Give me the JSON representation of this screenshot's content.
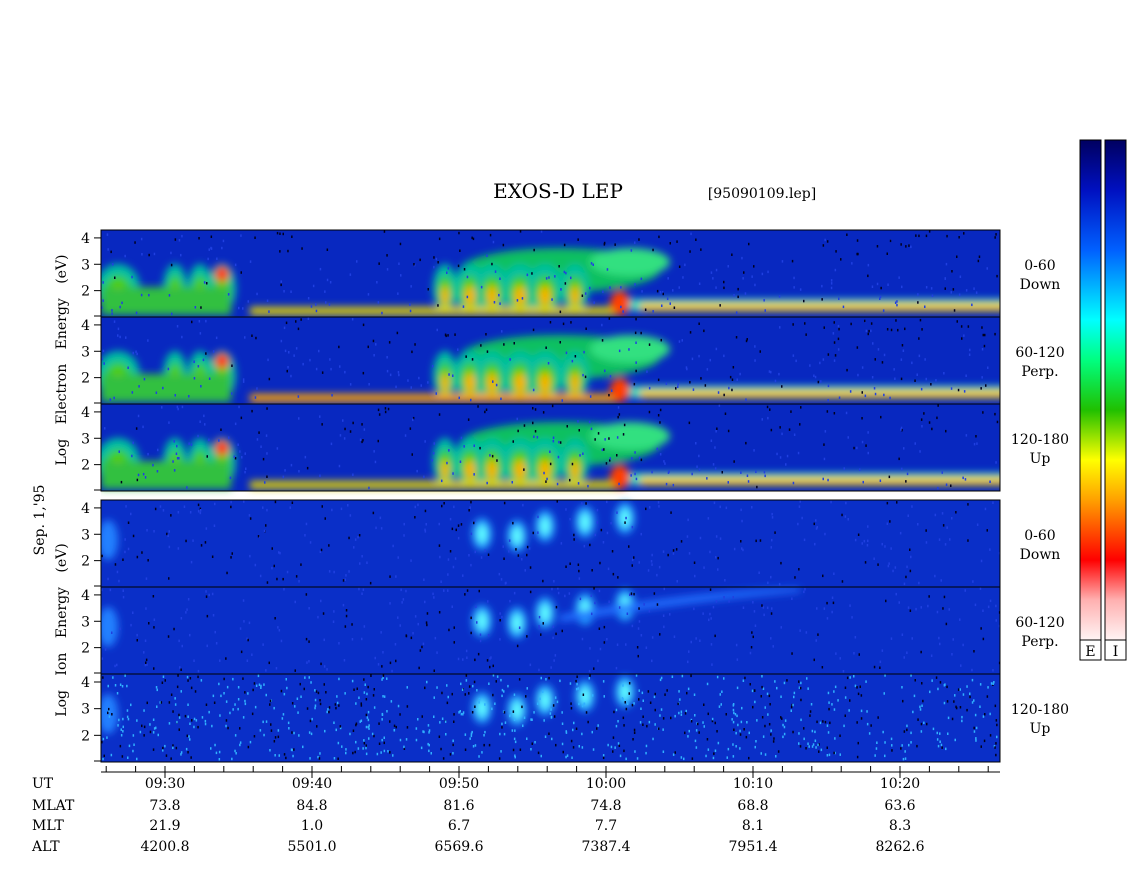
{
  "header": {
    "title": "EXOS-D LEP",
    "file": "[95090109.lep]",
    "date": "Sep. 1,'95"
  },
  "electron": {
    "axis_label": "Log Electron Energy (eV)",
    "panels": [
      [
        "0-60",
        "Down"
      ],
      [
        "60-120",
        "Perp."
      ],
      [
        "120-180",
        "Up"
      ]
    ]
  },
  "ion": {
    "axis_label": "Log Ion Energy (eV)",
    "panels": [
      [
        "0-60",
        "Down"
      ],
      [
        "60-120",
        "Perp."
      ],
      [
        "120-180",
        "Up"
      ]
    ]
  },
  "yticks": [
    2,
    3,
    4
  ],
  "ylim": [
    1,
    4.3
  ],
  "colorbars": [
    "E",
    "I"
  ],
  "table": {
    "row_labels": [
      "UT",
      "MLAT",
      "MLT",
      "ALT"
    ],
    "columns": [
      [
        "09:30",
        "73.8",
        "21.9",
        "4200.8"
      ],
      [
        "09:40",
        "84.8",
        "1.0",
        "5501.0"
      ],
      [
        "09:50",
        "81.6",
        "6.7",
        "6569.6"
      ],
      [
        "10:00",
        "74.8",
        "7.7",
        "7387.4"
      ],
      [
        "10:10",
        "68.8",
        "8.1",
        "7951.4"
      ],
      [
        "10:20",
        "63.6",
        "8.3",
        "8262.6"
      ]
    ]
  }
}
